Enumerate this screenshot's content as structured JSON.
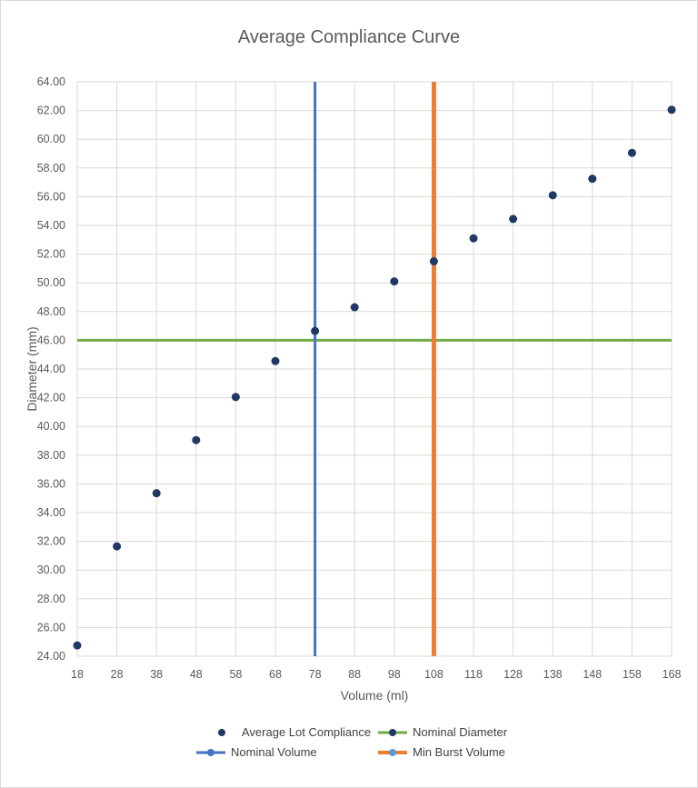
{
  "chart_data": {
    "type": "scatter",
    "title": "Average Compliance Curve",
    "xlabel": "Volume (ml)",
    "ylabel": "Diameter (mm)",
    "xlim": [
      18,
      168
    ],
    "ylim": [
      24,
      64
    ],
    "x_ticks": [
      "18",
      "28",
      "38",
      "48",
      "58",
      "68",
      "78",
      "88",
      "98",
      "108",
      "118",
      "128",
      "138",
      "148",
      "158",
      "168"
    ],
    "y_ticks": [
      "24.00",
      "26.00",
      "28.00",
      "30.00",
      "32.00",
      "34.00",
      "36.00",
      "38.00",
      "40.00",
      "42.00",
      "44.00",
      "46.00",
      "48.00",
      "50.00",
      "52.00",
      "54.00",
      "56.00",
      "58.00",
      "60.00",
      "62.00",
      "64.00"
    ],
    "grid": true,
    "legend_position": "bottom",
    "series": [
      {
        "name": "Average Lot Compliance",
        "kind": "markers",
        "color": "#1f3864",
        "x": [
          18,
          28,
          38,
          48,
          58,
          68,
          78,
          88,
          98,
          108,
          118,
          128,
          138,
          148,
          158,
          168
        ],
        "y": [
          24.75,
          31.65,
          35.35,
          39.05,
          42.05,
          44.55,
          46.65,
          48.3,
          50.1,
          51.5,
          53.1,
          54.45,
          56.1,
          57.25,
          59.05,
          62.05
        ]
      },
      {
        "name": "Nominal Diameter",
        "kind": "horizontal-line",
        "color": "#70ad47",
        "marker_color": "#1f3864",
        "y": 46
      },
      {
        "name": "Nominal Volume",
        "kind": "vertical-line",
        "color": "#4472c4",
        "marker_color": "#4472c4",
        "x": 78
      },
      {
        "name": "Min Burst Volume",
        "kind": "vertical-line",
        "color": "#ed7d31",
        "marker_color": "#5b9bd5",
        "x": 108
      }
    ]
  }
}
